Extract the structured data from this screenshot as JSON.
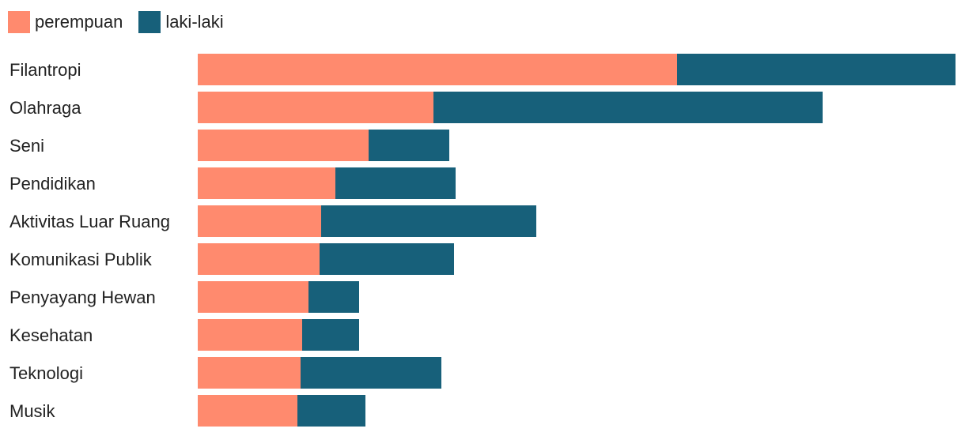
{
  "chart_data": {
    "type": "bar",
    "orientation": "horizontal",
    "stacked": true,
    "categories": [
      "Filantropi",
      "Olahraga",
      "Seni",
      "Pendidikan",
      "Aktivitas Luar Ruang",
      "Komunikasi Publik",
      "Penyayang Hewan",
      "Kesehatan",
      "Teknologi",
      "Musik"
    ],
    "series": [
      {
        "name": "perempuan",
        "color": "#FF8A6E",
        "values": [
          303,
          149,
          108,
          87,
          78,
          77,
          70,
          66,
          65,
          63
        ]
      },
      {
        "name": "laki-laki",
        "color": "#17607A",
        "values": [
          176,
          246,
          51,
          76,
          136,
          85,
          32,
          36,
          89,
          43
        ]
      }
    ],
    "xlim": [
      0,
      479
    ],
    "grid": false,
    "legend_position": "top-left"
  }
}
